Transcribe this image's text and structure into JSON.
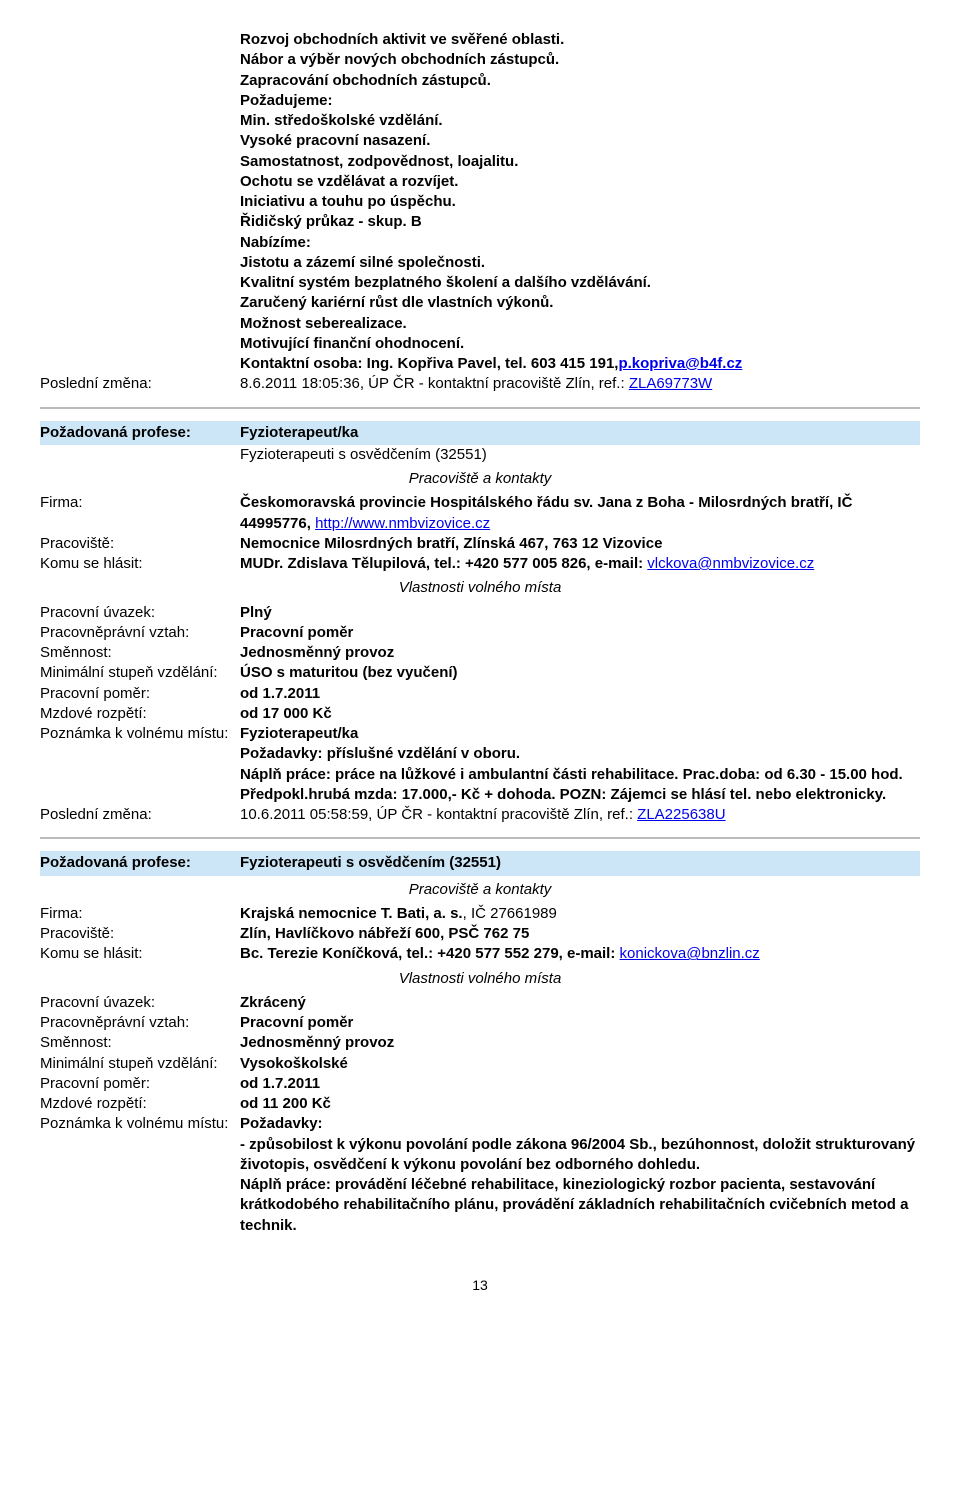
{
  "top": {
    "lines": [
      "Rozvoj obchodních aktivit ve svěřené oblasti.",
      "Nábor a výběr nových obchodních zástupců.",
      "Zapracování obchodních zástupců.",
      "Požadujeme:",
      "Min. středoškolské vzdělání.",
      "Vysoké pracovní nasazení.",
      "Samostatnost, zodpovědnost, loajalitu.",
      "Ochotu se vzdělávat a rozvíjet.",
      "Iniciativu a touhu po úspěchu.",
      "Řidičský průkaz - skup. B",
      "Nabízíme:",
      "Jistotu a zázemí silné společnosti.",
      "Kvalitní systém bezplatného školení a dalšího vzdělávání.",
      "Zaručený kariérní růst dle vlastních výkonů.",
      "Možnost seberealizace.",
      "Motivující finanční ohodnocení."
    ],
    "contact_prefix": "Kontaktní osoba: Ing. Kopřiva Pavel, tel. 603 415 191,",
    "contact_email": "p.kopriva@b4f.cz",
    "posledni_label": "Poslední změna:",
    "posledni_value_prefix": "8.6.2011 18:05:36, ÚP ČR - kontaktní pracoviště Zlín, ref.: ",
    "posledni_link": "ZLA69773W"
  },
  "job1": {
    "prof_label": "Požadovaná profese:",
    "prof_value": "Fyzioterapeut/ka",
    "prof_sub": "Fyzioterapeuti s osvědčením (32551)",
    "section1": "Pracoviště a kontakty",
    "firma_label": "Firma:",
    "firma_value_prefix": "Českomoravská provincie Hospitálského řádu sv. Jana z Boha - Milosrdných bratří, IČ 44995776, ",
    "firma_link": "http://www.nmbvizovice.cz",
    "pracoviste_label": "Pracoviště:",
    "pracoviste_value": "Nemocnice Milosrdných bratří, Zlínská 467, 763 12 Vizovice",
    "komu_label": "Komu se hlásit:",
    "komu_value_prefix": "MUDr. Zdislava Tělupilová, tel.: +420 577 005 826, e-mail: ",
    "komu_link": "vlckova@nmbvizovice.cz",
    "section2": "Vlastnosti volného místa",
    "uvazek_label": "Pracovní úvazek:",
    "uvazek_value": "Plný",
    "vztah_label": "Pracovněprávní vztah:",
    "vztah_value": "Pracovní poměr",
    "smennost_label": "Směnnost:",
    "smennost_value": "Jednosměnný provoz",
    "vzdelani_label": "Minimální stupeň vzdělání:",
    "vzdelani_value": "ÚSO s maturitou (bez vyučení)",
    "pomer_label": "Pracovní poměr:",
    "pomer_value": "od 1.7.2011",
    "mzda_label": "Mzdové rozpětí:",
    "mzda_value": "od 17 000 Kč",
    "pozn_label": "Poznámka k volnému místu:",
    "pozn_value": "Fyzioterapeut/ka\nPožadavky: příslušné vzdělání v oboru.\nNáplň práce: práce na lůžkové i ambulantní části rehabilitace. Prac.doba: od 6.30 - 15.00 hod. Předpokl.hrubá mzda: 17.000,- Kč + dohoda. POZN: Zájemci se hlásí tel. nebo elektronicky.",
    "posl_label": "Poslední změna:",
    "posl_value_prefix": "10.6.2011 05:58:59, ÚP ČR - kontaktní pracoviště Zlín, ref.: ",
    "posl_link": "ZLA225638U"
  },
  "job2": {
    "prof_label": "Požadovaná profese:",
    "prof_value": "Fyzioterapeuti s osvědčením (32551)",
    "section1": "Pracoviště a kontakty",
    "firma_label": "Firma:",
    "firma_value_bold": "Krajská nemocnice T. Bati, a. s.",
    "firma_value_rest": ", IČ 27661989",
    "pracoviste_label": "Pracoviště:",
    "pracoviste_value": "Zlín, Havlíčkovo nábřeží 600, PSČ 762 75",
    "komu_label": "Komu se hlásit:",
    "komu_value_prefix": "Bc. Terezie Koníčková, tel.: +420 577 552 279, e-mail: ",
    "komu_link": "konickova@bnzlin.cz",
    "section2": "Vlastnosti volného místa",
    "uvazek_label": "Pracovní úvazek:",
    "uvazek_value": "Zkrácený",
    "vztah_label": "Pracovněprávní vztah:",
    "vztah_value": "Pracovní poměr",
    "smennost_label": "Směnnost:",
    "smennost_value": "Jednosměnný provoz",
    "vzdelani_label": "Minimální stupeň vzdělání:",
    "vzdelani_value": "Vysokoškolské",
    "pomer_label": "Pracovní poměr:",
    "pomer_value": "od 1.7.2011",
    "mzda_label": "Mzdové rozpětí:",
    "mzda_value": "od 11 200 Kč",
    "pozn_label": "Poznámka k volnému místu:",
    "pozn_value": "Požadavky:\n- způsobilost k výkonu povolání podle zákona 96/2004 Sb., bezúhonnost, doložit strukturovaný životopis, osvědčení k výkonu povolání bez odborného dohledu.\nNáplň práce: provádění léčebné rehabilitace, kineziologický rozbor pacienta, sestavování krátkodobého rehabilitačního plánu, provádění základních rehabilitačních cvičebních metod a technik."
  },
  "pagenum": "13"
}
